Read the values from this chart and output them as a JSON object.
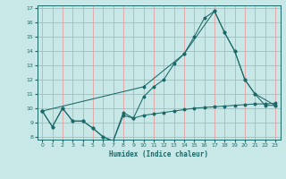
{
  "xlabel": "Humidex (Indice chaleur)",
  "background_color": "#c8e8e8",
  "grid_color": "#e8a0a0",
  "line_color": "#1a6868",
  "xlim": [
    -0.5,
    23.5
  ],
  "ylim": [
    7.8,
    17.2
  ],
  "xticks": [
    0,
    1,
    2,
    3,
    4,
    5,
    6,
    7,
    8,
    9,
    10,
    11,
    12,
    13,
    14,
    15,
    16,
    17,
    18,
    19,
    20,
    21,
    22,
    23
  ],
  "yticks": [
    8,
    9,
    10,
    11,
    12,
    13,
    14,
    15,
    16,
    17
  ],
  "line_zigzag_x": [
    0,
    1,
    2,
    3,
    4,
    5,
    6,
    7,
    8,
    9,
    10,
    11,
    12,
    13,
    14,
    15,
    16,
    17,
    18,
    19,
    20,
    21,
    22,
    23
  ],
  "line_zigzag_y": [
    9.8,
    8.7,
    10.0,
    9.1,
    9.1,
    8.6,
    8.0,
    7.7,
    9.7,
    9.3,
    10.8,
    11.5,
    12.0,
    13.1,
    13.8,
    15.0,
    16.3,
    16.8,
    15.3,
    14.0,
    12.0,
    11.0,
    10.2,
    10.2
  ],
  "line_diagonal_x": [
    0,
    10,
    14,
    17,
    18,
    19,
    20,
    21,
    23
  ],
  "line_diagonal_y": [
    9.8,
    11.5,
    13.8,
    16.8,
    15.3,
    14.0,
    12.0,
    11.0,
    10.2
  ],
  "line_flat_x": [
    0,
    1,
    2,
    3,
    4,
    5,
    6,
    7,
    8,
    9,
    10,
    11,
    12,
    13,
    14,
    15,
    16,
    17,
    18,
    19,
    20,
    21,
    22,
    23
  ],
  "line_flat_y": [
    9.8,
    8.7,
    10.0,
    9.1,
    9.1,
    8.6,
    8.0,
    7.7,
    9.5,
    9.3,
    9.5,
    9.6,
    9.7,
    9.8,
    9.9,
    10.0,
    10.05,
    10.1,
    10.15,
    10.2,
    10.25,
    10.3,
    10.3,
    10.35
  ]
}
